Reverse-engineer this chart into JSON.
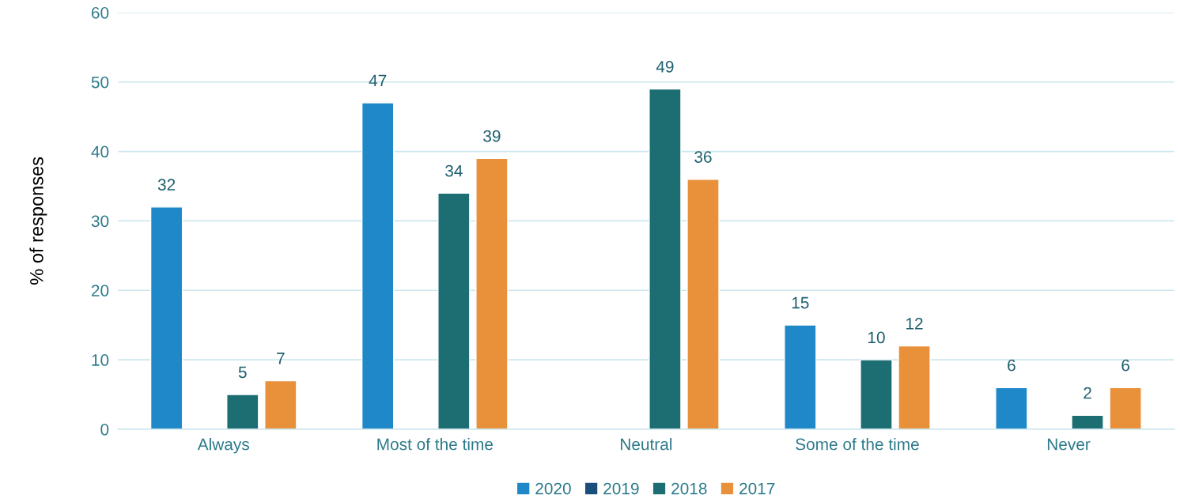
{
  "chart_data": {
    "type": "bar",
    "ylabel": "% of responses",
    "categories": [
      "Always",
      "Most of the time",
      "Neutral",
      "Some of the time",
      "Never"
    ],
    "series": [
      {
        "name": "2020",
        "color": "#1f88c9",
        "values": [
          32,
          47,
          null,
          15,
          6
        ]
      },
      {
        "name": "2019",
        "color": "#1a4e7c",
        "values": [
          null,
          null,
          null,
          null,
          null
        ]
      },
      {
        "name": "2018",
        "color": "#1c6e72",
        "values": [
          5,
          34,
          49,
          10,
          2
        ]
      },
      {
        "name": "2017",
        "color": "#e8913a",
        "values": [
          7,
          39,
          36,
          12,
          6
        ]
      }
    ],
    "ylim": [
      0,
      60
    ],
    "yticks": [
      0,
      10,
      20,
      30,
      40,
      50,
      60
    ],
    "grid": "y",
    "legend": "bottom",
    "data_labels": true
  }
}
